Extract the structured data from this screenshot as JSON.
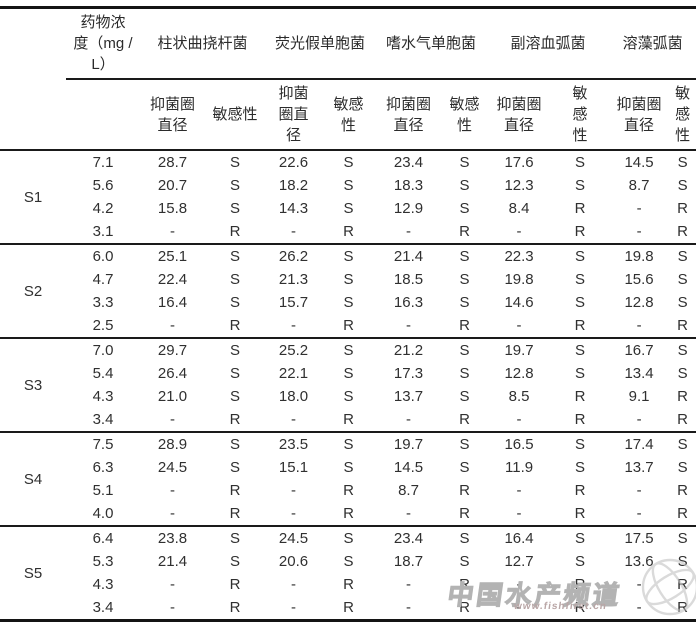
{
  "table": {
    "concentration_header": "药物浓\n度（mg /\nL）",
    "groups": [
      {
        "name": "柱状曲挠杆菌",
        "diameter_header": "抑菌圈\n直径",
        "sensitivity_header": "敏感性"
      },
      {
        "name": "荧光假单胞菌",
        "diameter_header": "抑菌\n圈直\n径",
        "sensitivity_header": "敏感\n性"
      },
      {
        "name": "嗜水气单胞菌",
        "diameter_header": "抑菌圈\n直径",
        "sensitivity_header": "敏感\n性"
      },
      {
        "name": "副溶血弧菌",
        "diameter_header": "抑菌圈\n直径",
        "sensitivity_header": "敏\n感\n性"
      },
      {
        "name": "溶藻弧菌",
        "diameter_header": "抑菌圈\n直径",
        "sensitivity_header": "敏\n感\n性"
      }
    ],
    "samples": [
      {
        "id": "S1",
        "rows": [
          {
            "conc": "7.1",
            "cells": [
              "28.7",
              "S",
              "22.6",
              "S",
              "23.4",
              "S",
              "17.6",
              "S",
              "14.5",
              "S"
            ]
          },
          {
            "conc": "5.6",
            "cells": [
              "20.7",
              "S",
              "18.2",
              "S",
              "18.3",
              "S",
              "12.3",
              "S",
              "8.7",
              "S"
            ]
          },
          {
            "conc": "4.2",
            "cells": [
              "15.8",
              "S",
              "14.3",
              "S",
              "12.9",
              "S",
              "8.4",
              "R",
              "-",
              "R"
            ]
          },
          {
            "conc": "3.1",
            "cells": [
              "-",
              "R",
              "-",
              "R",
              "-",
              "R",
              "-",
              "R",
              "-",
              "R"
            ]
          }
        ]
      },
      {
        "id": "S2",
        "rows": [
          {
            "conc": "6.0",
            "cells": [
              "25.1",
              "S",
              "26.2",
              "S",
              "21.4",
              "S",
              "22.3",
              "S",
              "19.8",
              "S"
            ]
          },
          {
            "conc": "4.7",
            "cells": [
              "22.4",
              "S",
              "21.3",
              "S",
              "18.5",
              "S",
              "19.8",
              "S",
              "15.6",
              "S"
            ]
          },
          {
            "conc": "3.3",
            "cells": [
              "16.4",
              "S",
              "15.7",
              "S",
              "16.3",
              "S",
              "14.6",
              "S",
              "12.8",
              "S"
            ]
          },
          {
            "conc": "2.5",
            "cells": [
              "-",
              "R",
              "-",
              "R",
              "-",
              "R",
              "-",
              "R",
              "-",
              "R"
            ]
          }
        ]
      },
      {
        "id": "S3",
        "rows": [
          {
            "conc": "7.0",
            "cells": [
              "29.7",
              "S",
              "25.2",
              "S",
              "21.2",
              "S",
              "19.7",
              "S",
              "16.7",
              "S"
            ]
          },
          {
            "conc": "5.4",
            "cells": [
              "26.4",
              "S",
              "22.1",
              "S",
              "17.3",
              "S",
              "12.8",
              "S",
              "13.4",
              "S"
            ]
          },
          {
            "conc": "4.3",
            "cells": [
              "21.0",
              "S",
              "18.0",
              "S",
              "13.7",
              "S",
              "8.5",
              "R",
              "9.1",
              "R"
            ]
          },
          {
            "conc": "3.4",
            "cells": [
              "-",
              "R",
              "-",
              "R",
              "-",
              "R",
              "-",
              "R",
              "-",
              "R"
            ]
          }
        ]
      },
      {
        "id": "S4",
        "rows": [
          {
            "conc": "7.5",
            "cells": [
              "28.9",
              "S",
              "23.5",
              "S",
              "19.7",
              "S",
              "16.5",
              "S",
              "17.4",
              "S"
            ]
          },
          {
            "conc": "6.3",
            "cells": [
              "24.5",
              "S",
              "15.1",
              "S",
              "14.5",
              "S",
              "11.9",
              "S",
              "13.7",
              "S"
            ]
          },
          {
            "conc": "5.1",
            "cells": [
              "-",
              "R",
              "-",
              "R",
              "8.7",
              "R",
              "-",
              "R",
              "-",
              "R"
            ]
          },
          {
            "conc": "4.0",
            "cells": [
              "-",
              "R",
              "-",
              "R",
              "-",
              "R",
              "-",
              "R",
              "-",
              "R"
            ]
          }
        ]
      },
      {
        "id": "S5",
        "rows": [
          {
            "conc": "6.4",
            "cells": [
              "23.8",
              "S",
              "24.5",
              "S",
              "23.4",
              "S",
              "16.4",
              "S",
              "17.5",
              "S"
            ]
          },
          {
            "conc": "5.3",
            "cells": [
              "21.4",
              "S",
              "20.6",
              "S",
              "18.7",
              "S",
              "12.7",
              "S",
              "13.6",
              "S"
            ]
          },
          {
            "conc": "4.3",
            "cells": [
              "-",
              "R",
              "-",
              "R",
              "-",
              "R",
              "-",
              "R",
              "-",
              "R"
            ]
          },
          {
            "conc": "3.4",
            "cells": [
              "-",
              "R",
              "-",
              "R",
              "-",
              "R",
              "-",
              "R",
              "-",
              "R"
            ]
          }
        ]
      }
    ]
  },
  "watermark": {
    "text": "中国水产频道",
    "url": "www.fishfirst.cn"
  }
}
